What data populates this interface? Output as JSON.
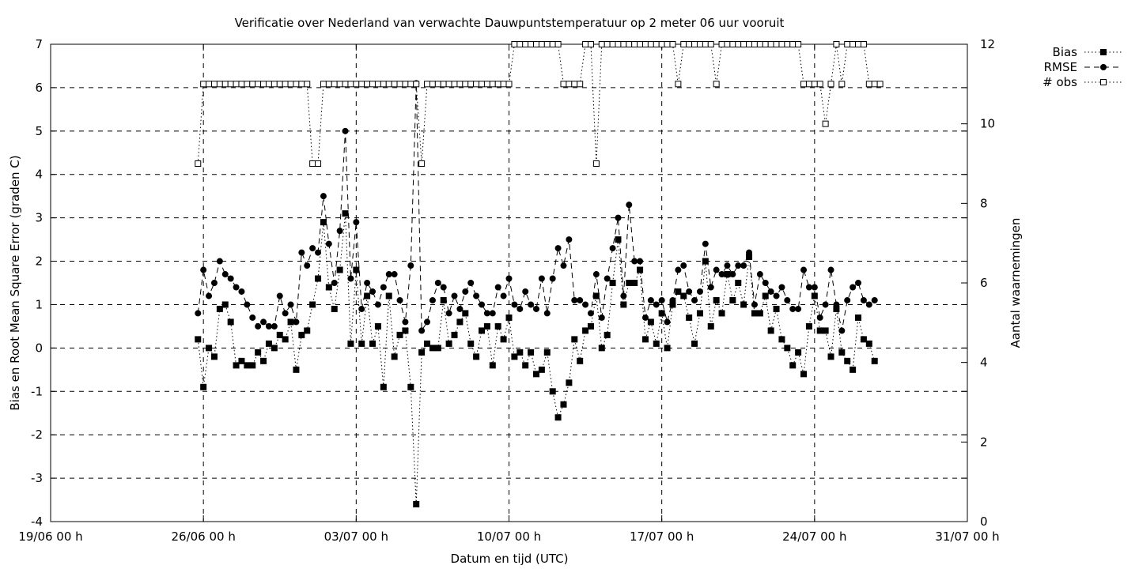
{
  "chart_data": {
    "type": "line",
    "title": "Verificatie over Nederland van verwachte Dauwpuntstemperatuur op 2 meter 06 uur vooruit",
    "xlabel": "Datum en tijd (UTC)",
    "ylabel": "Bias en Root Mean Square Error (graden C)",
    "y2label": "Aantal waarnemingen",
    "x_unit": "days since 19/06 00 h",
    "xlim": [
      0,
      42
    ],
    "ylim": [
      -4,
      7
    ],
    "y2lim": [
      0,
      12
    ],
    "x_ticks": [
      {
        "value": 0,
        "label": "19/06 00 h"
      },
      {
        "value": 7,
        "label": "26/06 00 h"
      },
      {
        "value": 14,
        "label": "03/07 00 h"
      },
      {
        "value": 21,
        "label": "10/07 00 h"
      },
      {
        "value": 28,
        "label": "17/07 00 h"
      },
      {
        "value": 35,
        "label": "24/07 00 h"
      },
      {
        "value": 42,
        "label": "31/07 00 h"
      }
    ],
    "y_ticks": [
      "7",
      "6",
      "5",
      "4",
      "3",
      "2",
      "1",
      "0",
      "-1",
      "-2",
      "-3",
      "-4"
    ],
    "y2_ticks": [
      "12",
      "10",
      "8",
      "6",
      "4",
      "2",
      "0"
    ],
    "grid": true,
    "legend_position": "top-right-outside",
    "x_start": 6.75,
    "x_step": 0.25,
    "series": [
      {
        "name": "Bias",
        "axis": "y1",
        "style": "dotted-filled-square",
        "values": [
          0.2,
          -0.9,
          0,
          -0.2,
          0.9,
          1,
          0.6,
          -0.4,
          -0.3,
          -0.4,
          -0.4,
          -0.1,
          -0.3,
          0.1,
          0,
          0.3,
          0.2,
          0.6,
          -0.5,
          0.3,
          0.4,
          1,
          1.6,
          2.9,
          1.4,
          0.9,
          1.8,
          3.1,
          0.1,
          1.8,
          0.1,
          1.2,
          0.1,
          0.5,
          -0.9,
          1.2,
          -0.2,
          0.3,
          0.4,
          -0.9,
          -3.6,
          -0.1,
          0.1,
          0,
          0,
          1.1,
          0.1,
          0.3,
          0.6,
          0.8,
          0.1,
          -0.2,
          0.4,
          0.5,
          -0.4,
          0.5,
          0.2,
          0.7,
          -0.2,
          -0.1,
          -0.4,
          -0.1,
          -0.6,
          -0.5,
          -0.1,
          -1,
          -1.6,
          -1.3,
          -0.8,
          0.2,
          -0.3,
          0.4,
          0.5,
          1.2,
          0,
          0.3,
          1.5,
          2.5,
          1,
          1.5,
          1.5,
          1.8,
          0.2,
          0.6,
          0.1,
          0.8,
          0,
          1,
          1.3,
          1.2,
          0.7,
          0.1,
          0.8,
          2,
          0.5,
          1.1,
          0.8,
          1.7,
          1.1,
          1.5,
          1,
          2.1,
          0.8,
          0.8,
          1.2,
          0.4,
          0.9,
          0.2,
          0,
          -0.4,
          -0.1,
          -0.6,
          0.5,
          1.2,
          0.4,
          0.4,
          -0.2,
          0.9,
          -0.1,
          -0.3,
          -0.5,
          0.7,
          0.2,
          0.1,
          -0.3
        ]
      },
      {
        "name": "RMSE",
        "axis": "y1",
        "style": "dashed-filled-circle",
        "values": [
          0.8,
          1.8,
          1.2,
          1.5,
          2,
          1.7,
          1.6,
          1.4,
          1.3,
          1,
          0.7,
          0.5,
          0.6,
          0.5,
          0.5,
          1.2,
          0.8,
          1,
          0.6,
          2.2,
          1.9,
          2.3,
          2.2,
          3.5,
          2.4,
          1.5,
          2.7,
          5,
          1.6,
          2.9,
          0.9,
          1.5,
          1.3,
          1,
          1.4,
          1.7,
          1.7,
          1.1,
          0.6,
          1.9,
          6.1,
          0.4,
          0.6,
          1.1,
          1.5,
          1.4,
          0.8,
          1.2,
          0.9,
          1.3,
          1.5,
          1.2,
          1,
          0.8,
          0.8,
          1.4,
          1.2,
          1.6,
          1,
          0.9,
          1.3,
          1,
          0.9,
          1.6,
          0.8,
          1.6,
          2.3,
          1.9,
          2.5,
          1.1,
          1.1,
          1,
          0.8,
          1.7,
          0.7,
          1.6,
          2.3,
          3,
          1.2,
          3.3,
          2,
          2,
          0.7,
          1.1,
          1,
          1.1,
          0.6,
          1.1,
          1.8,
          1.9,
          1.3,
          1.1,
          1.3,
          2.4,
          1.4,
          1.8,
          1.7,
          1.9,
          1.7,
          1.9,
          1.9,
          2.2,
          1,
          1.7,
          1.5,
          1.3,
          1.2,
          1.4,
          1.1,
          0.9,
          0.9,
          1.8,
          1.4,
          1.4,
          0.7,
          1,
          1.8,
          1,
          0.4,
          1.1,
          1.4,
          1.5,
          1.1,
          1,
          1.1
        ]
      },
      {
        "name": "# obs",
        "axis": "y2",
        "style": "dotted-open-square",
        "values": [
          9,
          11,
          11,
          11,
          11,
          11,
          11,
          11,
          11,
          11,
          11,
          11,
          11,
          11,
          11,
          11,
          11,
          11,
          11,
          11,
          11,
          9,
          9,
          11,
          11,
          11,
          11,
          11,
          11,
          11,
          11,
          11,
          11,
          11,
          11,
          11,
          11,
          11,
          11,
          11,
          11,
          9,
          11,
          11,
          11,
          11,
          11,
          11,
          11,
          11,
          11,
          11,
          11,
          11,
          11,
          11,
          11,
          11,
          12,
          12,
          12,
          12,
          12,
          12,
          12,
          12,
          12,
          11,
          11,
          11,
          11,
          12,
          12,
          9,
          12,
          12,
          12,
          12,
          12,
          12,
          12,
          12,
          12,
          12,
          12,
          12,
          12,
          12,
          11,
          12,
          12,
          12,
          12,
          12,
          12,
          11,
          12,
          12,
          12,
          12,
          12,
          12,
          12,
          12,
          12,
          12,
          12,
          12,
          12,
          12,
          12,
          11,
          11,
          11,
          11,
          10,
          11,
          12,
          11,
          12,
          12,
          12,
          12,
          11,
          11,
          11
        ]
      }
    ]
  }
}
